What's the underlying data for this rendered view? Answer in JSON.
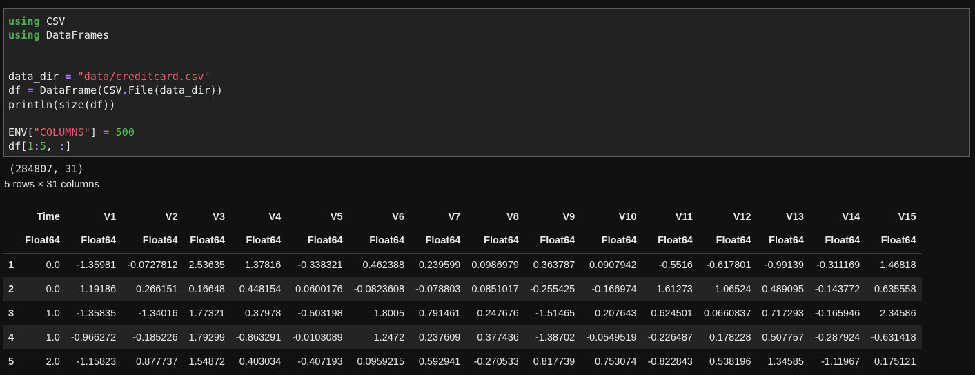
{
  "code": {
    "lines": [
      [
        {
          "t": "using",
          "c": "kw"
        },
        {
          "t": " CSV",
          "c": ""
        }
      ],
      [
        {
          "t": "using",
          "c": "kw"
        },
        {
          "t": " DataFrames",
          "c": ""
        }
      ],
      [],
      [],
      [
        {
          "t": "data_dir ",
          "c": ""
        },
        {
          "t": "=",
          "c": "op"
        },
        {
          "t": " ",
          "c": ""
        },
        {
          "t": "\"data/creditcard.csv\"",
          "c": "str"
        }
      ],
      [
        {
          "t": "df ",
          "c": ""
        },
        {
          "t": "=",
          "c": "op"
        },
        {
          "t": " DataFrame(CSV",
          "c": ""
        },
        {
          "t": ".",
          "c": "op"
        },
        {
          "t": "File(data_dir))",
          "c": ""
        }
      ],
      [
        {
          "t": "println(size(df))",
          "c": ""
        }
      ],
      [],
      [
        {
          "t": "ENV[",
          "c": ""
        },
        {
          "t": "\"COLUMNS\"",
          "c": "str"
        },
        {
          "t": "] ",
          "c": ""
        },
        {
          "t": "=",
          "c": "op"
        },
        {
          "t": " ",
          "c": ""
        },
        {
          "t": "500",
          "c": "num"
        }
      ],
      [
        {
          "t": "df[",
          "c": ""
        },
        {
          "t": "1",
          "c": "num"
        },
        {
          "t": ":",
          "c": "op"
        },
        {
          "t": "5",
          "c": "num"
        },
        {
          "t": ", ",
          "c": ""
        },
        {
          "t": ":",
          "c": "op"
        },
        {
          "t": "]",
          "c": ""
        }
      ]
    ]
  },
  "output": {
    "stdout": "(284807, 31)",
    "summary": "5 rows × 31 columns"
  },
  "table": {
    "columns": [
      "Time",
      "V1",
      "V2",
      "V3",
      "V4",
      "V5",
      "V6",
      "V7",
      "V8",
      "V9",
      "V10",
      "V11",
      "V12",
      "V13",
      "V14",
      "V15"
    ],
    "types": [
      "Float64",
      "Float64",
      "Float64",
      "Float64",
      "Float64",
      "Float64",
      "Float64",
      "Float64",
      "Float64",
      "Float64",
      "Float64",
      "Float64",
      "Float64",
      "Float64",
      "Float64",
      "Float64"
    ],
    "rows": [
      {
        "idx": "1",
        "cells": [
          "0.0",
          "-1.35981",
          "-0.0727812",
          "2.53635",
          "1.37816",
          "-0.338321",
          "0.462388",
          "0.239599",
          "0.0986979",
          "0.363787",
          "0.0907942",
          "-0.5516",
          "-0.617801",
          "-0.99139",
          "-0.311169",
          "1.46818"
        ]
      },
      {
        "idx": "2",
        "cells": [
          "0.0",
          "1.19186",
          "0.266151",
          "0.16648",
          "0.448154",
          "0.0600176",
          "-0.0823608",
          "-0.078803",
          "0.0851017",
          "-0.255425",
          "-0.166974",
          "1.61273",
          "1.06524",
          "0.489095",
          "-0.143772",
          "0.635558"
        ]
      },
      {
        "idx": "3",
        "cells": [
          "1.0",
          "-1.35835",
          "-1.34016",
          "1.77321",
          "0.37978",
          "-0.503198",
          "1.8005",
          "0.791461",
          "0.247676",
          "-1.51465",
          "0.207643",
          "0.624501",
          "0.0660837",
          "0.717293",
          "-0.165946",
          "2.34586"
        ]
      },
      {
        "idx": "4",
        "cells": [
          "1.0",
          "-0.966272",
          "-0.185226",
          "1.79299",
          "-0.863291",
          "-0.0103089",
          "1.2472",
          "0.237609",
          "0.377436",
          "-1.38702",
          "-0.0549519",
          "-0.226487",
          "0.178228",
          "0.507757",
          "-0.287924",
          "-0.631418"
        ]
      },
      {
        "idx": "5",
        "cells": [
          "2.0",
          "-1.15823",
          "0.877737",
          "1.54872",
          "0.403034",
          "-0.407193",
          "0.0959215",
          "0.592941",
          "-0.270533",
          "0.817739",
          "0.753074",
          "-0.822843",
          "0.538196",
          "1.34585",
          "-1.11967",
          "0.175121"
        ]
      }
    ]
  }
}
